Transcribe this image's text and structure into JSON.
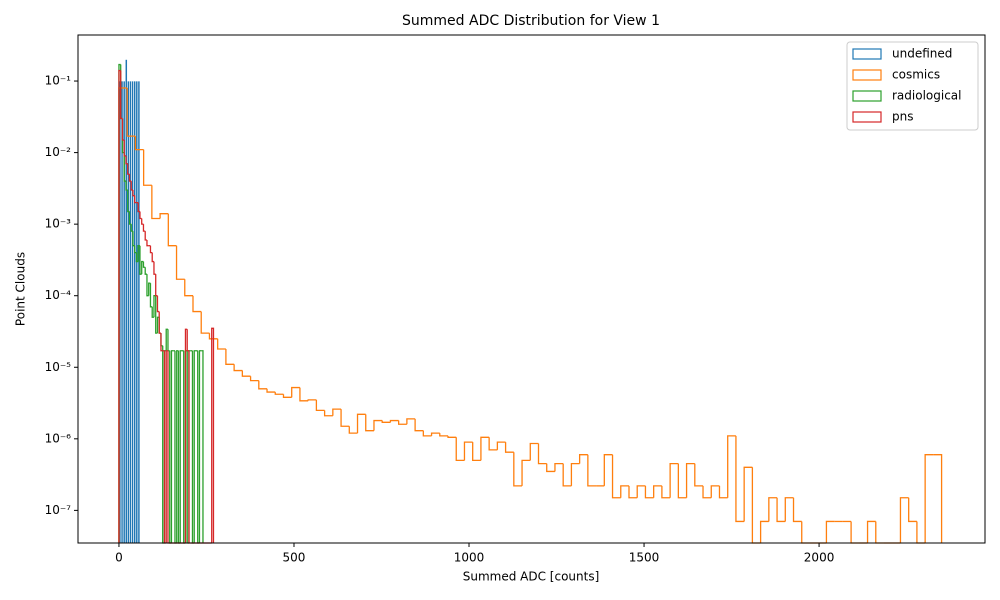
{
  "chart_data": {
    "type": "histogram",
    "title": "Summed ADC Distribution for View 1",
    "x_label": "Summed ADC [counts]",
    "y_label": "Point Clouds",
    "y_scale": "log",
    "legend_loc": "upper right",
    "xlim": [
      -117,
      2474
    ],
    "ylim": [
      3.5e-08,
      0.44
    ],
    "xticks": [
      0,
      500,
      1000,
      1500,
      2000
    ],
    "yticks": [
      {
        "value": 1e-07,
        "label": "10⁻⁷"
      },
      {
        "value": 1e-06,
        "label": "10⁻⁶"
      },
      {
        "value": 1e-05,
        "label": "10⁻⁵"
      },
      {
        "value": 0.0001,
        "label": "10⁻⁴"
      },
      {
        "value": 0.001,
        "label": "10⁻³"
      },
      {
        "value": 0.01,
        "label": "10⁻²"
      },
      {
        "value": 0.1,
        "label": "10⁻¹"
      }
    ],
    "series": [
      {
        "name": "undefined",
        "color": "#1f77b4",
        "histtype": "bar",
        "bins": [
          0,
          6,
          12,
          18,
          24,
          30,
          36,
          42,
          48,
          54,
          60
        ],
        "values": [
          0.1,
          0.1,
          0.1,
          0.2,
          0.1,
          0.1,
          0.1,
          0.1,
          0.1,
          0.1
        ]
      },
      {
        "name": "cosmics",
        "color": "#ff7f0e",
        "histtype": "step",
        "bins": [
          0,
          23.5,
          47,
          70.5,
          94,
          117.5,
          141,
          164.5,
          188,
          211.5,
          235,
          258.5,
          282,
          305.5,
          329,
          352.5,
          376,
          399.5,
          423,
          446.5,
          470,
          493.5,
          517,
          540.5,
          564,
          587.5,
          611,
          634.5,
          658,
          681.5,
          705,
          728.5,
          752,
          775.5,
          799,
          822.5,
          846,
          869.5,
          893,
          916.5,
          940,
          963.5,
          987,
          1010.5,
          1034,
          1057.5,
          1081,
          1104.5,
          1128,
          1151.5,
          1175,
          1198.5,
          1222,
          1245.5,
          1269,
          1292.5,
          1316,
          1339.5,
          1363,
          1386.5,
          1410,
          1433.5,
          1457,
          1480.5,
          1504,
          1527.5,
          1551,
          1574.5,
          1598,
          1621.5,
          1645,
          1668.5,
          1692,
          1715.5,
          1739,
          1762.5,
          1786,
          1809.5,
          1833,
          1856.5,
          1880,
          1903.5,
          1927,
          1950.5,
          1974,
          1997.5,
          2021,
          2044.5,
          2068,
          2091.5,
          2115,
          2138.5,
          2162,
          2185.5,
          2209,
          2232.5,
          2256,
          2279.5,
          2303,
          2326.5,
          2350
        ],
        "values": [
          0.08,
          0.017,
          0.011,
          0.0035,
          0.0012,
          0.0014,
          0.0005,
          0.00017,
          0.0001,
          6e-05,
          3e-05,
          2.5e-05,
          1.8e-05,
          1.1e-05,
          9e-06,
          7.5e-06,
          6.5e-06,
          5e-06,
          4.5e-06,
          4.2e-06,
          3.8e-06,
          5.2e-06,
          3.4e-06,
          3.5e-06,
          2.5e-06,
          2.1e-06,
          2.6e-06,
          1.5e-06,
          1.2e-06,
          2.2e-06,
          1.3e-06,
          1.8e-06,
          1.7e-06,
          1.8e-06,
          1.6e-06,
          1.9e-06,
          1.3e-06,
          1.1e-06,
          1.2e-06,
          1.1e-06,
          1.05e-06,
          5e-07,
          9e-07,
          5e-07,
          1.05e-06,
          7e-07,
          9e-07,
          6.5e-07,
          2.2e-07,
          5e-07,
          8.6e-07,
          4.5e-07,
          3.5e-07,
          4.5e-07,
          2.2e-07,
          4.5e-07,
          6e-07,
          2.2e-07,
          2.2e-07,
          6e-07,
          1.5e-07,
          2.2e-07,
          1.5e-07,
          2.2e-07,
          1.5e-07,
          2.2e-07,
          1.5e-07,
          4.5e-07,
          1.5e-07,
          4.5e-07,
          2.2e-07,
          1.5e-07,
          2.2e-07,
          1.5e-07,
          1.1e-06,
          7e-08,
          4e-07,
          0,
          7e-08,
          1.5e-07,
          7e-08,
          1.5e-07,
          7e-08,
          0,
          0,
          0,
          7e-08,
          7e-08,
          7e-08,
          0,
          0,
          7e-08,
          0,
          0,
          0,
          1.5e-07,
          7e-08,
          0,
          6e-07,
          6e-07
        ]
      },
      {
        "name": "radiological",
        "color": "#2ca02c",
        "histtype": "step",
        "bins": [
          0,
          5,
          10,
          15,
          20,
          25,
          30,
          35,
          40,
          45,
          50,
          55,
          60,
          65,
          70,
          75,
          80,
          85,
          90,
          95,
          100,
          105,
          110,
          115,
          120,
          125,
          130,
          135,
          140,
          145,
          150,
          155,
          160,
          165,
          170,
          175,
          180,
          185,
          190,
          195,
          200,
          205,
          210,
          215,
          220,
          225,
          230,
          235,
          240
        ],
        "values": [
          0.17,
          0.03,
          0.01,
          0.004,
          0.003,
          0.0015,
          0.001,
          0.0008,
          0.0005,
          0.0004,
          0.0003,
          0.0005,
          0.0002,
          0.0003,
          0.00025,
          0.0002,
          0.0001,
          0.00015,
          7e-05,
          5e-05,
          0.0001,
          3e-05,
          5e-05,
          3e-05,
          2e-05,
          0,
          1.7e-05,
          3.4e-05,
          1.7e-05,
          0,
          1.7e-05,
          1.7e-05,
          0,
          1.7e-05,
          0,
          1.7e-05,
          1.7e-05,
          0,
          1.7e-05,
          0,
          1.7e-05,
          1.7e-05,
          0,
          1.7e-05,
          1.7e-05,
          0,
          1.7e-05,
          1.7e-05
        ]
      },
      {
        "name": "pns",
        "color": "#d62728",
        "histtype": "step",
        "bins": [
          0,
          5,
          10,
          15,
          20,
          25,
          30,
          35,
          40,
          45,
          50,
          55,
          60,
          65,
          70,
          75,
          80,
          85,
          90,
          95,
          100,
          105,
          110,
          115,
          120,
          125,
          130,
          135,
          140,
          145,
          150,
          155,
          160,
          165,
          170,
          175,
          180,
          185,
          190,
          195,
          200,
          205,
          210,
          215,
          220,
          225,
          230,
          235,
          240,
          245,
          250,
          255,
          260,
          265,
          270
        ],
        "values": [
          0.14,
          0.03,
          0.015,
          0.009,
          0.007,
          0.005,
          0.004,
          0.003,
          0.0025,
          0.002,
          0.002,
          0.0015,
          0.0012,
          0.001,
          0.0008,
          0.0006,
          0.0005,
          0.0005,
          0.0004,
          0.0003,
          0.0002,
          0.0001,
          6e-05,
          3e-05,
          1.7e-05,
          1.7e-05,
          0,
          1.7e-05,
          0,
          0,
          0,
          0,
          0,
          0,
          0,
          0,
          0,
          0,
          3.4e-05,
          1.7e-05,
          0,
          0,
          0,
          0,
          0,
          0,
          0,
          0,
          0,
          0,
          0,
          0,
          0,
          3.5e-05
        ]
      }
    ]
  }
}
